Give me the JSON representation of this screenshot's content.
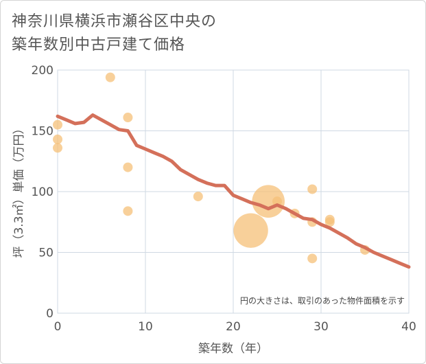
{
  "title_lines": [
    "神奈川県横浜市瀬谷区中央の",
    "築年数別中古戸建て価格"
  ],
  "chart_data": {
    "type": "scatter",
    "title": "神奈川県横浜市瀬谷区中央の築年数別中古戸建て価格",
    "xlabel": "築年数（年）",
    "ylabel": "坪（3.3㎡）単価（万円）",
    "xlim": [
      0,
      40
    ],
    "ylim": [
      0,
      200
    ],
    "xticks": [
      0,
      10,
      20,
      30,
      40
    ],
    "yticks": [
      0,
      50,
      100,
      150,
      200
    ],
    "grid": true,
    "note": "円の大きさは、取引のあった物件面積を示す",
    "colors": {
      "points": "#f5c078",
      "trend": "#d4705a",
      "grid": "#cfd8e3"
    },
    "points": [
      {
        "x": 0,
        "y": 155,
        "s": 1
      },
      {
        "x": 0,
        "y": 143,
        "s": 1
      },
      {
        "x": 0,
        "y": 136,
        "s": 1
      },
      {
        "x": 6,
        "y": 194,
        "s": 1
      },
      {
        "x": 8,
        "y": 161,
        "s": 1
      },
      {
        "x": 8,
        "y": 120,
        "s": 1
      },
      {
        "x": 8,
        "y": 84,
        "s": 1
      },
      {
        "x": 16,
        "y": 96,
        "s": 1
      },
      {
        "x": 22,
        "y": 68,
        "s": 3.6
      },
      {
        "x": 24,
        "y": 92,
        "s": 3.4
      },
      {
        "x": 25,
        "y": 92,
        "s": 1
      },
      {
        "x": 27,
        "y": 82,
        "s": 1
      },
      {
        "x": 29,
        "y": 102,
        "s": 1
      },
      {
        "x": 29,
        "y": 75,
        "s": 1
      },
      {
        "x": 29,
        "y": 45,
        "s": 1
      },
      {
        "x": 31,
        "y": 77,
        "s": 1
      },
      {
        "x": 31,
        "y": 75,
        "s": 1
      },
      {
        "x": 35,
        "y": 52,
        "s": 1
      }
    ],
    "trend": {
      "x": [
        0,
        1,
        2,
        3,
        4,
        5,
        6,
        7,
        8,
        9,
        10,
        11,
        12,
        13,
        14,
        15,
        16,
        17,
        18,
        19,
        20,
        21,
        22,
        23,
        24,
        25,
        26,
        27,
        28,
        29,
        30,
        31,
        32,
        33,
        34,
        35,
        36,
        37,
        38,
        39,
        40
      ],
      "y": [
        162,
        159,
        156,
        157,
        163,
        159,
        155,
        151,
        150,
        138,
        135,
        132,
        129,
        125,
        118,
        114,
        110,
        107,
        105,
        105,
        97,
        94,
        91,
        89,
        86,
        89,
        86,
        82,
        78,
        77,
        73,
        70,
        66,
        62,
        57,
        54,
        50,
        47,
        44,
        41,
        38
      ]
    }
  }
}
